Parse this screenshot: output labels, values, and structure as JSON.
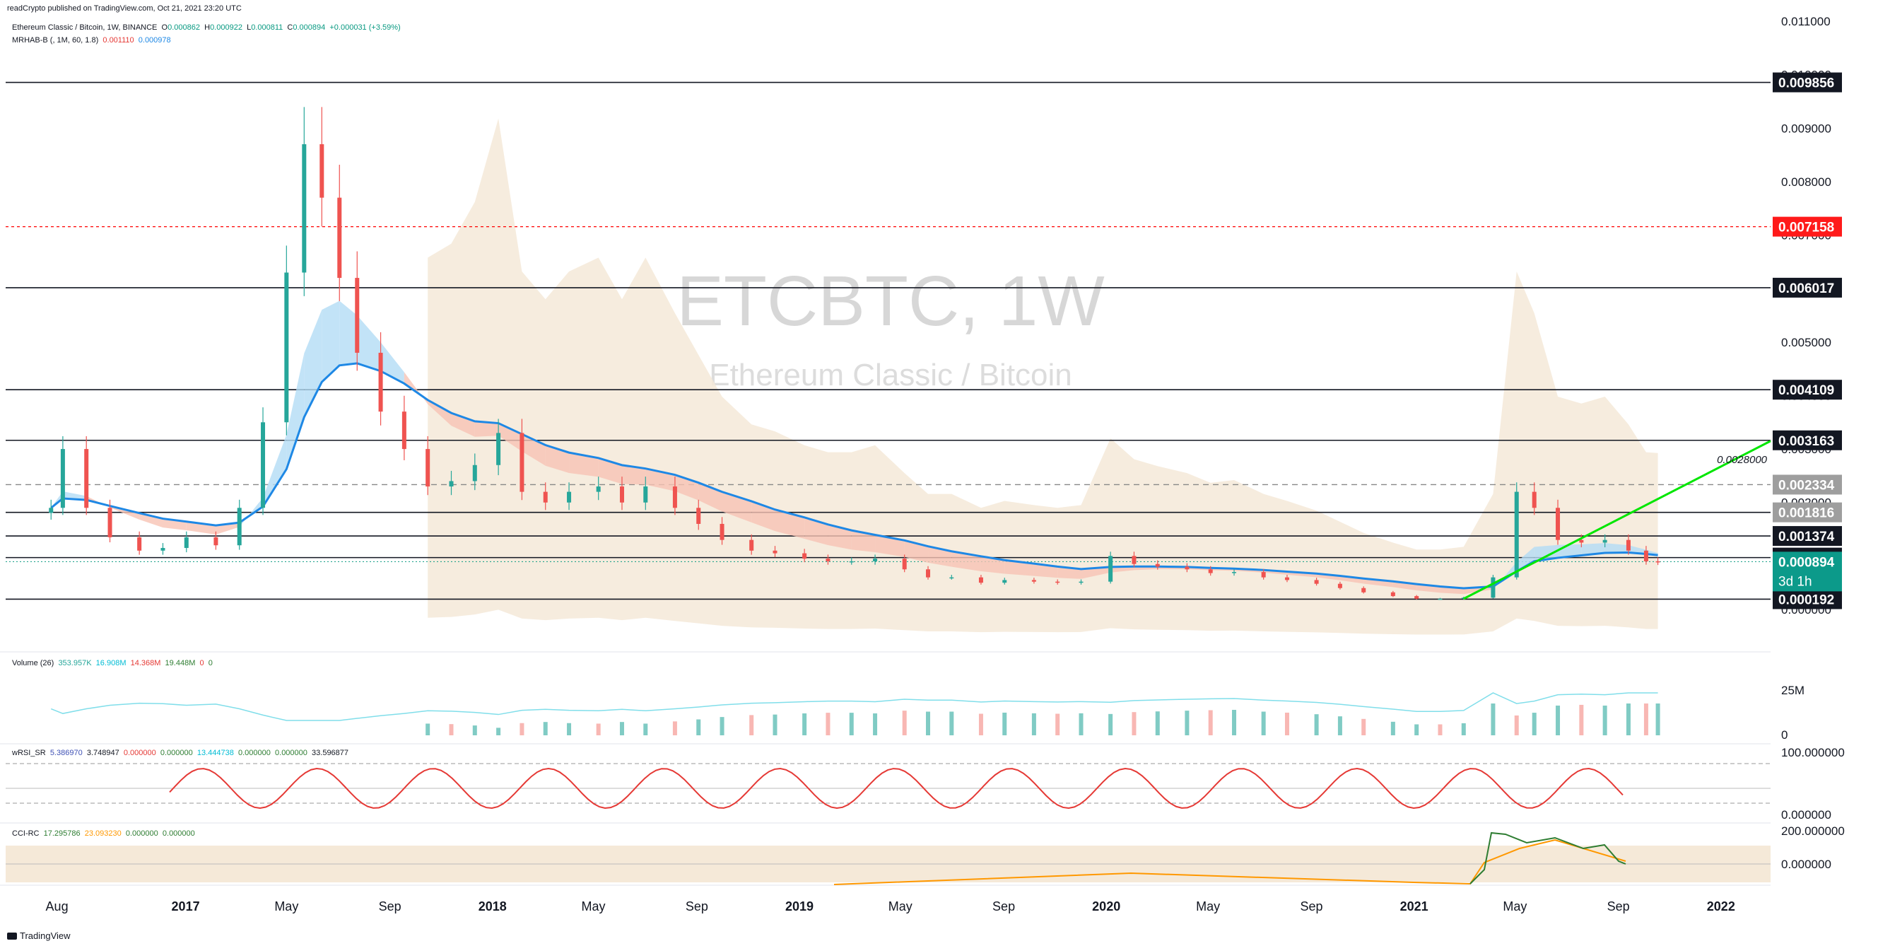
{
  "header": {
    "published": "readCrypto published on TradingView.com, Oct 21, 2021 23:20 UTC",
    "symbol_line": {
      "name": "Ethereum Classic / Bitcoin, 1W, BINANCE",
      "o_label": "O",
      "o": "0.000862",
      "h_label": "H",
      "h": "0.000922",
      "l_label": "L",
      "l": "0.000811",
      "c_label": "C",
      "c": "0.000894",
      "chg": "+0.000031 (+3.59%)"
    },
    "indicator_line": {
      "name": "MRHAB-B (, 1M, 60, 1.8)",
      "v1": "0.001110",
      "v2": "0.000978"
    }
  },
  "watermark": {
    "ticker": "ETCBTC, 1W",
    "name": "Ethereum Classic / Bitcoin"
  },
  "price_axis": [
    "0.011000",
    "0.010000",
    "0.009000",
    "0.008000",
    "0.007000",
    "0.006000",
    "0.005000",
    "0.004000",
    "0.003000",
    "0.002000",
    "0.001000",
    "0.000000"
  ],
  "time_axis": [
    "Aug",
    "2017",
    "May",
    "Sep",
    "2018",
    "May",
    "Sep",
    "2019",
    "May",
    "Sep",
    "2020",
    "May",
    "Sep",
    "2021",
    "May",
    "Sep",
    "2022"
  ],
  "levels": [
    {
      "label": "0.009856",
      "value": 0.009856,
      "style": "solid",
      "tag": "black"
    },
    {
      "label": "0.007158",
      "value": 0.007158,
      "style": "dashed-red",
      "tag": "red"
    },
    {
      "label": "0.006017",
      "value": 0.006017,
      "style": "solid",
      "tag": "black"
    },
    {
      "label": "0.004109",
      "value": 0.004109,
      "style": "solid",
      "tag": "black"
    },
    {
      "label": "0.003163",
      "value": 0.003163,
      "style": "solid",
      "tag": "black"
    },
    {
      "label": "0.002334",
      "value": 0.002334,
      "style": "dashed",
      "tag": "gray"
    },
    {
      "label": "0.001816",
      "value": 0.001816,
      "style": "solid",
      "tag": "gray"
    },
    {
      "label": "0.001374",
      "value": 0.001374,
      "style": "solid",
      "tag": "black"
    },
    {
      "label": "0.000970",
      "value": 0.00097,
      "style": "solid",
      "tag": "black"
    },
    {
      "label": "0.000192",
      "value": 0.000192,
      "style": "solid",
      "tag": "black"
    }
  ],
  "current_price": {
    "label": "0.000894",
    "countdown": "3d 1h",
    "value": 0.000894
  },
  "trendline_label": "0.0028000",
  "panels": {
    "volume": {
      "legend": "Volume (26)",
      "v1": "353.957K",
      "v2": "16.908M",
      "v3": "14.368M",
      "v4": "19.448M",
      "v5": "0",
      "v6": "0",
      "axis": [
        "25M",
        "0"
      ]
    },
    "wrsi": {
      "legend": "wRSI_SR",
      "v1": "5.386970",
      "v2": "3.748947",
      "v3": "0.000000",
      "v4": "0.000000",
      "v5": "13.444738",
      "v6": "0.000000",
      "v7": "0.000000",
      "v8": "33.596877",
      "axis": [
        "100.000000",
        "0.000000"
      ]
    },
    "cci": {
      "legend": "CCI-RC",
      "v1": "17.295786",
      "v2": "23.093230",
      "v3": "0.000000",
      "v4": "0.000000",
      "axis": [
        "200.000000",
        "0.000000"
      ]
    }
  },
  "branding": "TradingView",
  "colors": {
    "up": "#26a69a",
    "down": "#ef5350",
    "blue": "#1e88e5",
    "green_line": "#00e600",
    "orange": "#ff9800",
    "band": "#f5e9d8",
    "red_level": "#ff0000"
  },
  "chart_data": {
    "type": "candlestick",
    "title": "ETCBTC, 1W",
    "x_range": [
      "2016-07",
      "2022-03"
    ],
    "ylim": [
      0,
      0.0111
    ],
    "series": [
      {
        "name": "Ethereum Classic / Bitcoin",
        "points": [
          [
            "2016-07-25",
            0.0019
          ],
          [
            "2016-08-08",
            0.003
          ],
          [
            "2016-09-05",
            0.0019
          ],
          [
            "2016-10-03",
            0.00135
          ],
          [
            "2016-11-07",
            0.0011
          ],
          [
            "2016-12-05",
            0.00115
          ],
          [
            "2017-01-02",
            0.00135
          ],
          [
            "2017-02-06",
            0.0012
          ],
          [
            "2017-03-06",
            0.0019
          ],
          [
            "2017-04-03",
            0.0035
          ],
          [
            "2017-05-01",
            0.0063
          ],
          [
            "2017-05-22",
            0.0087
          ],
          [
            "2017-06-12",
            0.0077
          ],
          [
            "2017-07-03",
            0.0062
          ],
          [
            "2017-07-24",
            0.0048
          ],
          [
            "2017-08-21",
            0.0037
          ],
          [
            "2017-09-18",
            0.003
          ],
          [
            "2017-10-16",
            0.0023
          ],
          [
            "2017-11-13",
            0.0024
          ],
          [
            "2017-12-11",
            0.0027
          ],
          [
            "2018-01-08",
            0.0033
          ],
          [
            "2018-02-05",
            0.0022
          ],
          [
            "2018-03-05",
            0.002
          ],
          [
            "2018-04-02",
            0.0022
          ],
          [
            "2018-05-07",
            0.0023
          ],
          [
            "2018-06-04",
            0.002
          ],
          [
            "2018-07-02",
            0.0023
          ],
          [
            "2018-08-06",
            0.0019
          ],
          [
            "2018-09-03",
            0.0016
          ],
          [
            "2018-10-01",
            0.0013
          ],
          [
            "2018-11-05",
            0.0011
          ],
          [
            "2018-12-03",
            0.00105
          ],
          [
            "2019-01-07",
            0.00095
          ],
          [
            "2019-02-04",
            0.0009
          ],
          [
            "2019-03-04",
            0.0009
          ],
          [
            "2019-04-01",
            0.00095
          ],
          [
            "2019-05-06",
            0.00075
          ],
          [
            "2019-06-03",
            0.0006
          ],
          [
            "2019-07-01",
            0.0006
          ],
          [
            "2019-08-05",
            0.0005
          ],
          [
            "2019-09-02",
            0.00055
          ],
          [
            "2019-10-07",
            0.00052
          ],
          [
            "2019-11-04",
            0.0005
          ],
          [
            "2019-12-02",
            0.00052
          ],
          [
            "2020-01-06",
            0.001
          ],
          [
            "2020-02-03",
            0.00085
          ],
          [
            "2020-03-02",
            0.0008
          ],
          [
            "2020-04-06",
            0.00075
          ],
          [
            "2020-05-04",
            0.00068
          ],
          [
            "2020-06-01",
            0.0007
          ],
          [
            "2020-07-06",
            0.0006
          ],
          [
            "2020-08-03",
            0.00055
          ],
          [
            "2020-09-07",
            0.00048
          ],
          [
            "2020-10-05",
            0.0004
          ],
          [
            "2020-11-02",
            0.00032
          ],
          [
            "2020-12-07",
            0.00025
          ],
          [
            "2021-01-04",
            0.0002
          ],
          [
            "2021-02-01",
            0.0002
          ],
          [
            "2021-03-01",
            0.00022
          ],
          [
            "2021-04-05",
            0.0006
          ],
          [
            "2021-05-03",
            0.0022
          ],
          [
            "2021-05-24",
            0.0019
          ],
          [
            "2021-06-21",
            0.0013
          ],
          [
            "2021-07-19",
            0.00125
          ],
          [
            "2021-08-16",
            0.0013
          ],
          [
            "2021-09-13",
            0.0011
          ],
          [
            "2021-10-04",
            0.0009
          ],
          [
            "2021-10-18",
            0.000894
          ]
        ]
      }
    ]
  }
}
